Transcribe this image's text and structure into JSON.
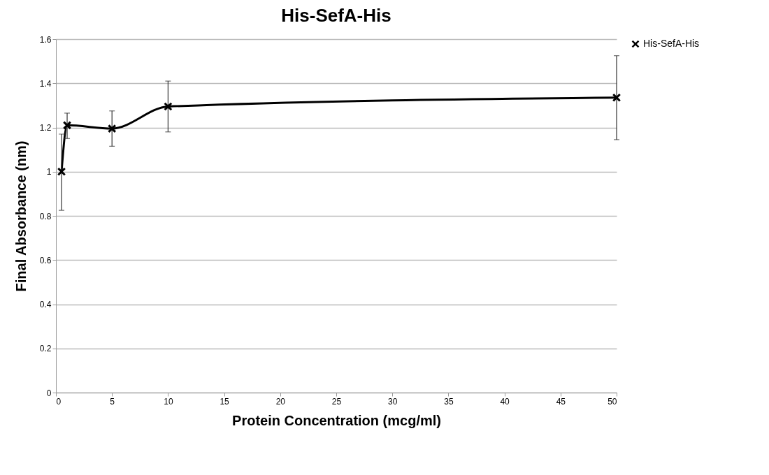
{
  "chart_data": {
    "type": "line",
    "title": "His-SefA-His",
    "xlabel": "Protein Concentration (mcg/ml)",
    "ylabel": "Final Absorbance (nm)",
    "x": [
      0.5,
      1,
      5,
      10,
      50
    ],
    "series": [
      {
        "name": "His-SefA-His",
        "color": "#000000",
        "values": [
          1.0,
          1.21,
          1.195,
          1.295,
          1.335
        ],
        "errors": [
          [
            0.825,
            1.17
          ],
          [
            1.15,
            1.265
          ],
          [
            1.115,
            1.275
          ],
          [
            1.18,
            1.41
          ],
          [
            1.145,
            1.525
          ]
        ]
      }
    ],
    "xlim": [
      0,
      50
    ],
    "xticks": [
      0,
      5,
      10,
      15,
      20,
      25,
      30,
      35,
      40,
      45,
      50
    ],
    "ylim": [
      0,
      1.6
    ],
    "yticks": [
      0,
      0.2,
      0.4,
      0.6,
      0.8,
      1,
      1.2,
      1.4,
      1.6
    ],
    "grid": "y",
    "legend": "right",
    "marker": "cross",
    "line_style": "solid"
  }
}
